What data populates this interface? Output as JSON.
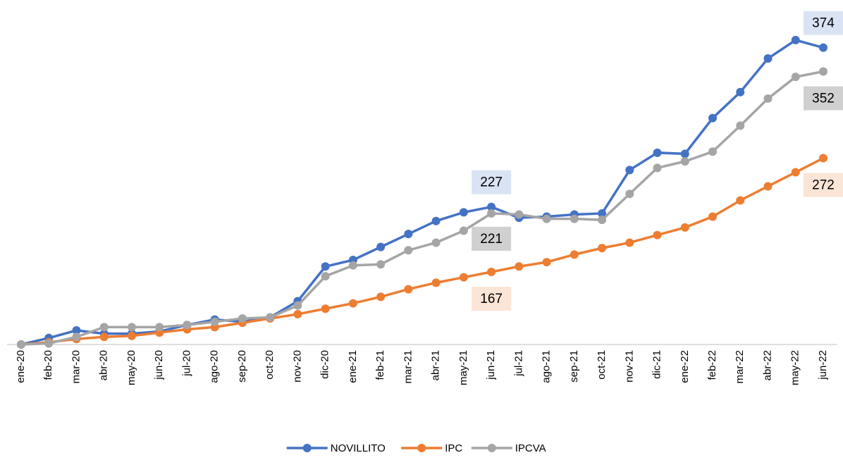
{
  "chart_data": {
    "type": "line",
    "categories": [
      "ene-20",
      "feb-20",
      "mar-20",
      "abr-20",
      "may-20",
      "jun-20",
      "jul-20",
      "ago-20",
      "sep-20",
      "oct-20",
      "nov-20",
      "dic-20",
      "ene-21",
      "feb-21",
      "mar-21",
      "abr-21",
      "may-21",
      "jun-21",
      "jul-21",
      "ago-21",
      "sep-21",
      "oct-21",
      "nov-21",
      "dic-21",
      "ene-22",
      "feb-22",
      "mar-22",
      "abr-22",
      "may-22",
      "jun-22"
    ],
    "series": [
      {
        "name": "NOVILLITO",
        "color": "#4472c4",
        "values": [
          100,
          106,
          113,
          110,
          110,
          112,
          118,
          123,
          121,
          125,
          140,
          172,
          178,
          190,
          202,
          214,
          222,
          227,
          217,
          218,
          220,
          221,
          261,
          277,
          276,
          309,
          333,
          364,
          381,
          374
        ]
      },
      {
        "name": "IPC",
        "color": "#ed7d31",
        "values": [
          100,
          102,
          105,
          107,
          108,
          111,
          114,
          116,
          120,
          124,
          128,
          133,
          138,
          144,
          151,
          157,
          162,
          167,
          172,
          176,
          183,
          189,
          194,
          201,
          208,
          218,
          233,
          246,
          259,
          272
        ]
      },
      {
        "name": "IPCVA",
        "color": "#a5a5a5",
        "values": [
          100,
          101,
          107,
          116,
          116,
          116,
          118,
          121,
          124,
          125,
          136,
          163,
          173,
          174,
          187,
          194,
          205,
          221,
          220,
          216,
          216,
          215,
          239,
          263,
          269,
          278,
          302,
          327,
          347,
          352
        ]
      }
    ],
    "ylim": [
      100,
      405
    ],
    "legend": "bottom"
  }
}
